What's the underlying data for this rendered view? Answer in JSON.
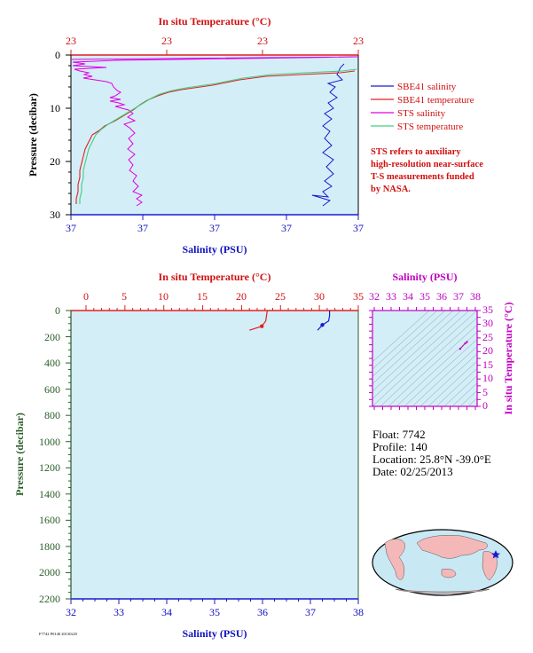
{
  "colors": {
    "temperature": "#e02020",
    "salinity": "#1a1acc",
    "sts_salinity": "#e000e0",
    "sts_temperature": "#40d080",
    "plot_bg": "#d4eef8",
    "pressure_axis": "#2a5d2a",
    "ts_axis": "#c000c0",
    "land": "#f4b8b8",
    "ocean": "#c8e8f4"
  },
  "top_chart": {
    "temp_axis_title": "In situ Temperature (°C)",
    "temp_ticks": [
      "23",
      "23",
      "23",
      "23"
    ],
    "sal_axis_title": "Salinity (PSU)",
    "sal_ticks": [
      "37",
      "37",
      "37",
      "37",
      "37"
    ],
    "pressure_axis_title": "Pressure (decibar)",
    "pressure_ticks": [
      "0",
      "10",
      "20",
      "30"
    ],
    "legend": [
      {
        "label": "SBE41 salinity",
        "color": "#1a1acc"
      },
      {
        "label": "SBE41 temperature",
        "color": "#e02020"
      },
      {
        "label": "STS salinity",
        "color": "#e000e0"
      },
      {
        "label": "STS temperature",
        "color": "#40d080"
      }
    ],
    "note": [
      "STS refers to auxiliary",
      "high-resolution near-surface",
      "T-S measurements funded",
      "by NASA."
    ]
  },
  "bottom_chart": {
    "temp_axis_title": "In situ Temperature (°C)",
    "temp_ticks": [
      "0",
      "5",
      "10",
      "15",
      "20",
      "25",
      "30",
      "35"
    ],
    "sal_axis_title": "Salinity (PSU)",
    "sal_ticks": [
      "32",
      "33",
      "34",
      "35",
      "36",
      "37",
      "38"
    ],
    "pressure_axis_title": "Pressure (decibar)",
    "pressure_ticks": [
      "0",
      "200",
      "400",
      "600",
      "800",
      "1000",
      "1200",
      "1400",
      "1600",
      "1800",
      "2000",
      "2200"
    ]
  },
  "ts_diagram": {
    "sal_axis_title": "Salinity (PSU)",
    "sal_ticks": [
      "32",
      "33",
      "34",
      "35",
      "36",
      "37",
      "38"
    ],
    "temp_axis_title": "In situ Temperature (°C)",
    "temp_ticks": [
      "0",
      "5",
      "10",
      "15",
      "20",
      "25",
      "30",
      "35"
    ]
  },
  "float_info": {
    "float": "Float:  7742",
    "profile": "Profile:  140",
    "location": "Location:  25.8°N  -39.0°E",
    "date": "Date:  02/25/2013"
  },
  "footer_code": "F7742 P0140 20130225",
  "chart_data": [
    {
      "type": "line",
      "title": "",
      "xlabel": "Salinity (PSU)",
      "x2label": "In situ Temperature (°C)",
      "ylabel": "Pressure (decibar)",
      "ylim": [
        30,
        0
      ],
      "series": [
        {
          "name": "SBE41 salinity",
          "x": [
            37.92,
            37.91,
            37.9,
            37.88,
            37.85,
            37.86,
            37.84,
            37.85,
            37.83,
            37.85,
            37.84
          ],
          "y": [
            2,
            4,
            6,
            8,
            10,
            12,
            15,
            18,
            21,
            24,
            27
          ]
        },
        {
          "name": "SBE41 temperature",
          "x": [
            23.95,
            23.7,
            23.55,
            23.5,
            23.45,
            23.4,
            23.32,
            23.18,
            23.12,
            23.08,
            23.06
          ],
          "y": [
            3,
            4,
            5,
            7,
            8,
            10,
            12,
            15,
            18,
            22,
            28
          ]
        },
        {
          "name": "STS salinity",
          "x": [
            37.1,
            37.55,
            37.48,
            37.52,
            37.6,
            37.55,
            37.6,
            37.62,
            37.6,
            37.62,
            37.64
          ],
          "y": [
            0.6,
            2,
            4,
            6,
            8,
            10,
            13,
            16,
            20,
            24,
            28
          ]
        },
        {
          "name": "STS temperature",
          "x": [
            23.98,
            23.72,
            23.56,
            23.51,
            23.46,
            23.41,
            23.33,
            23.2,
            23.14,
            23.1,
            23.08
          ],
          "y": [
            2.5,
            4,
            5,
            7,
            8,
            10,
            12,
            15,
            18,
            22,
            28
          ]
        }
      ]
    },
    {
      "type": "line",
      "title": "",
      "xlabel": "Salinity (PSU)",
      "x2label": "In situ Temperature (°C)",
      "ylabel": "Pressure (decibar)",
      "xlim": [
        32,
        38
      ],
      "x2lim": [
        0,
        35
      ],
      "ylim": [
        2200,
        0
      ],
      "series": [
        {
          "name": "Temperature",
          "x": [
            23.3,
            23.2,
            23.1,
            22.6,
            21.0
          ],
          "y": [
            0,
            40,
            80,
            120,
            150
          ]
        },
        {
          "name": "Salinity",
          "x": [
            37.4,
            37.4,
            37.38,
            37.25,
            37.15
          ],
          "y": [
            0,
            40,
            80,
            110,
            150
          ]
        }
      ]
    },
    {
      "type": "scatter",
      "title": "",
      "xlabel": "Salinity (PSU)",
      "ylabel": "In situ Temperature (°C)",
      "xlim": [
        32,
        38
      ],
      "ylim": [
        0,
        35
      ],
      "x": [
        37.1,
        37.4,
        37.5
      ],
      "y": [
        21.0,
        23.0,
        23.5
      ]
    }
  ]
}
